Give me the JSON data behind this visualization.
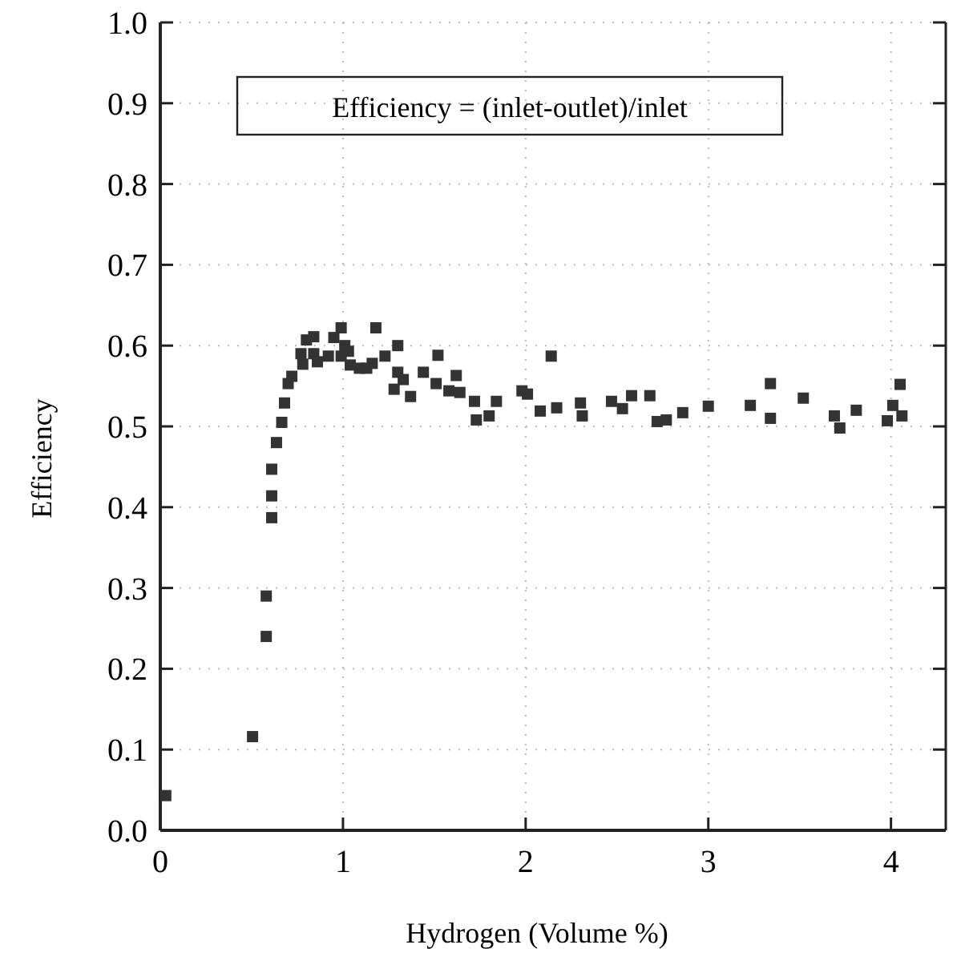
{
  "chart_data": {
    "type": "scatter",
    "xlabel": "Hydrogen (Volume %)",
    "ylabel": "Efficiency",
    "annotations": [
      "Efficiency = (inlet-outlet)/inlet"
    ],
    "xlim": [
      0,
      4.3
    ],
    "xticks": [
      0,
      1,
      2,
      3,
      4
    ],
    "ylim": [
      0,
      1
    ],
    "yticks": [
      {
        "value": 0,
        "label": "0.0"
      },
      0.1,
      0.2,
      0.3,
      0.4,
      0.5,
      0.6,
      0.7,
      0.8,
      0.9,
      {
        "value": 1,
        "label": "1.0"
      }
    ],
    "grid": true,
    "marker": "square",
    "series": [
      {
        "color": "#333333",
        "x": [
          0.03,
          0.505,
          0.58,
          0.58,
          0.61,
          0.61,
          0.61,
          0.636,
          0.665,
          0.68,
          0.7,
          0.72,
          0.78,
          0.77,
          0.8,
          0.84,
          0.84,
          0.86,
          0.92,
          0.95,
          0.99,
          0.99,
          1.01,
          1.03,
          1.04,
          1.09,
          1.13,
          1.16,
          1.18,
          1.23,
          1.3,
          1.3,
          1.28,
          1.33,
          1.37,
          1.44,
          1.51,
          1.52,
          1.58,
          1.62,
          1.64,
          1.72,
          1.73,
          1.8,
          1.84,
          1.98,
          2.01,
          2.08,
          2.14,
          2.17,
          2.3,
          2.31,
          2.47,
          2.53,
          2.58,
          2.68,
          2.72,
          2.77,
          2.86,
          3.0,
          3.23,
          3.34,
          3.34,
          3.52,
          3.69,
          3.72,
          3.81,
          3.98,
          4.01,
          4.05,
          4.06
        ],
        "values": [
          0.043,
          0.116,
          0.24,
          0.29,
          0.387,
          0.414,
          0.447,
          0.48,
          0.505,
          0.529,
          0.553,
          0.562,
          0.577,
          0.59,
          0.607,
          0.611,
          0.59,
          0.58,
          0.587,
          0.61,
          0.622,
          0.587,
          0.6,
          0.593,
          0.576,
          0.572,
          0.572,
          0.578,
          0.622,
          0.587,
          0.6,
          0.567,
          0.546,
          0.558,
          0.537,
          0.567,
          0.553,
          0.588,
          0.544,
          0.563,
          0.542,
          0.531,
          0.508,
          0.513,
          0.531,
          0.544,
          0.54,
          0.519,
          0.587,
          0.523,
          0.529,
          0.513,
          0.531,
          0.522,
          0.538,
          0.538,
          0.506,
          0.508,
          0.517,
          0.525,
          0.526,
          0.553,
          0.51,
          0.535,
          0.513,
          0.498,
          0.52,
          0.507,
          0.526,
          0.552,
          0.513
        ]
      }
    ]
  }
}
